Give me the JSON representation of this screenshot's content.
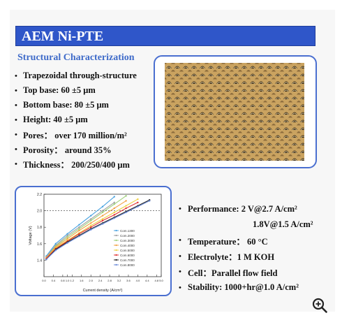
{
  "title": "AEM Ni-PTE",
  "subtitle": "Structural Characterization",
  "structure_bullets": [
    "Trapezoidal through-structure",
    "Top base: 60 ±5 μm",
    "Bottom base: 80 ±5 μm",
    "Height: 40 ±5 μm",
    "Pores： over 170 million/m²",
    "Porosity： around 35%",
    "Thickness： 200/250/400 μm"
  ],
  "performance_bullets": {
    "performance": "Performance: 2 V@2.7 A/cm²",
    "performance_2": "1.8V@1.5 A/cm²",
    "temperature": "Temperature： 60 °C",
    "electrolyte": "Electrolyte：1 M KOH",
    "cell": "Cell：Parallel flow field",
    "stability": "Stability: 1000+hr@1.0 A/cm²"
  },
  "icons": {
    "zoom": "zoom-in-icon",
    "bullet": "bullet-dot"
  },
  "colors": {
    "title_bg": "#2f56c9",
    "subtitle": "#3f6bc9",
    "frame": "#4a6fd0"
  },
  "chart_data": {
    "type": "line",
    "xlabel": "Current density (A/cm²)",
    "ylabel": "Voltage (V)",
    "xlim": [
      0,
      5.0
    ],
    "ylim": [
      1.2,
      2.2
    ],
    "x_ticks": [
      "0.0",
      "0.4",
      "0.8",
      "1.0",
      "1.2",
      "1.6",
      "2.0",
      "2.4",
      "2.8",
      "3.2",
      "3.6",
      "4.0",
      "4.4",
      "4.8",
      "5.0"
    ],
    "y_ticks": [
      "1.4",
      "1.6",
      "1.8",
      "2.0",
      "2.2"
    ],
    "reference_line_y": 2.0,
    "series": [
      {
        "name": "Com.1300",
        "color": "#4aa3e0",
        "x": [
          0.1,
          0.5,
          1.0,
          1.5,
          2.0,
          2.5,
          3.0
        ],
        "y": [
          1.45,
          1.6,
          1.72,
          1.83,
          1.94,
          2.05,
          2.17
        ]
      },
      {
        "name": "Com.2000",
        "color": "#a0a0a0",
        "x": [
          0.1,
          0.5,
          1.0,
          1.5,
          2.0,
          2.5,
          3.0
        ],
        "y": [
          1.44,
          1.58,
          1.7,
          1.8,
          1.9,
          2.0,
          2.1
        ]
      },
      {
        "name": "Com.3000",
        "color": "#9fd07a",
        "x": [
          0.1,
          0.5,
          1.0,
          1.5,
          2.0,
          2.5,
          3.0,
          3.5
        ],
        "y": [
          1.43,
          1.57,
          1.68,
          1.78,
          1.88,
          1.98,
          2.08,
          2.18
        ]
      },
      {
        "name": "Com.4000",
        "color": "#f2a040",
        "x": [
          0.1,
          0.5,
          1.0,
          1.5,
          2.0,
          2.5,
          3.0,
          3.5
        ],
        "y": [
          1.43,
          1.56,
          1.66,
          1.76,
          1.85,
          1.94,
          2.03,
          2.12
        ]
      },
      {
        "name": "Com.5000",
        "color": "#f0d040",
        "x": [
          0.1,
          0.5,
          1.0,
          1.5,
          2.0,
          2.5,
          3.0,
          3.5,
          4.0
        ],
        "y": [
          1.42,
          1.55,
          1.64,
          1.73,
          1.82,
          1.9,
          1.98,
          2.06,
          2.14
        ]
      },
      {
        "name": "Com.6000",
        "color": "#e03030",
        "x": [
          0.1,
          0.5,
          1.0,
          1.5,
          2.0,
          2.5,
          3.0,
          3.5,
          4.0
        ],
        "y": [
          1.42,
          1.54,
          1.63,
          1.72,
          1.8,
          1.88,
          1.95,
          2.03,
          2.1
        ]
      },
      {
        "name": "Com.7000",
        "color": "#222222",
        "x": [
          0.1,
          0.5,
          1.0,
          1.5,
          2.0,
          2.5,
          3.0,
          3.5,
          4.0,
          4.5
        ],
        "y": [
          1.41,
          1.53,
          1.62,
          1.7,
          1.78,
          1.85,
          1.92,
          1.99,
          2.06,
          2.13
        ]
      },
      {
        "name": "Com.8000",
        "color": "#6a8ad8",
        "x": [
          0.1,
          0.5,
          1.0,
          1.5,
          2.0,
          2.5,
          3.0,
          3.5,
          4.0,
          4.5
        ],
        "y": [
          1.41,
          1.52,
          1.61,
          1.69,
          1.77,
          1.84,
          1.91,
          1.98,
          2.05,
          2.12
        ]
      }
    ]
  }
}
